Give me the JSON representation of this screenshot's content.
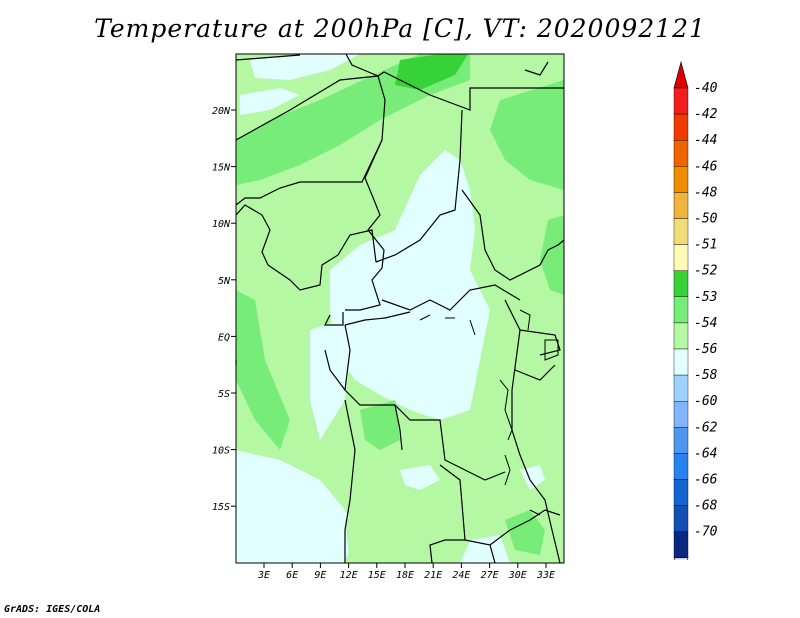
{
  "title": "Temperature at 200hPa [C], VT: 2020092121",
  "credit": "GrADS: IGES/COLA",
  "map": {
    "lat_labels": [
      "20N",
      "15N",
      "10N",
      "5N",
      "EQ",
      "5S",
      "10S",
      "15S"
    ],
    "lon_labels": [
      "3E",
      "6E",
      "9E",
      "12E",
      "15E",
      "18E",
      "21E",
      "24E",
      "27E",
      "30E",
      "33E"
    ],
    "colors": {
      "light": "#e1ffff",
      "pale_green": "#b4f8a4",
      "mid_green": "#78ec78",
      "dark_green": "#37d237"
    }
  },
  "legend": {
    "items": [
      {
        "label": "-40",
        "color": "#f01e1e"
      },
      {
        "label": "-42",
        "color": "#f03c00"
      },
      {
        "label": "-44",
        "color": "#f06400"
      },
      {
        "label": "-46",
        "color": "#f08c00"
      },
      {
        "label": "-48",
        "color": "#f0b43c"
      },
      {
        "label": "-50",
        "color": "#f0dc78"
      },
      {
        "label": "-51",
        "color": "#fffab4"
      },
      {
        "label": "-52",
        "color": "#37d237"
      },
      {
        "label": "-53",
        "color": "#78ec78"
      },
      {
        "label": "-54",
        "color": "#b4f8a4"
      },
      {
        "label": "-56",
        "color": "#e1ffff"
      },
      {
        "label": "-58",
        "color": "#a0d2ff"
      },
      {
        "label": "-60",
        "color": "#82b4ff"
      },
      {
        "label": "-62",
        "color": "#5096f0"
      },
      {
        "label": "-64",
        "color": "#2882f0"
      },
      {
        "label": "-66",
        "color": "#1464d2"
      },
      {
        "label": "-68",
        "color": "#1450b4"
      },
      {
        "label": "-70",
        "color": "#0a2882"
      }
    ],
    "top_color": "#dc0000",
    "bottom_color": "#e6e6ff"
  }
}
